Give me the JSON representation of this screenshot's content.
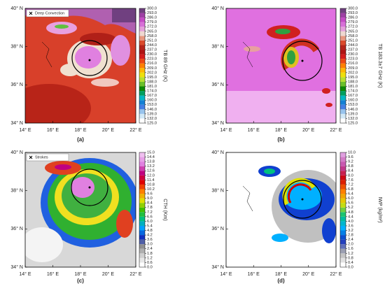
{
  "chart_data": [
    {
      "type": "map",
      "label": "(a)",
      "colorbar_label": "TB 89 GHz (K)",
      "legend": "Deep Convection",
      "xlim": [
        14,
        22
      ],
      "ylim": [
        34,
        40
      ],
      "xticks": [
        {
          "value": 14,
          "label": "14° E"
        },
        {
          "value": 16,
          "label": "16° E"
        },
        {
          "value": 18,
          "label": "18° E"
        },
        {
          "value": 20,
          "label": "20° E"
        },
        {
          "value": 22,
          "label": "22° E"
        }
      ],
      "yticks": [
        {
          "value": 34,
          "label": "34° N"
        },
        {
          "value": 36,
          "label": "36° N"
        },
        {
          "value": 38,
          "label": "38° N"
        },
        {
          "value": 40,
          "label": "40° N"
        }
      ],
      "clim": [
        125,
        300
      ],
      "colors": [
        "#ffffff",
        "#b0d8f0",
        "#2060e0",
        "#00c0c0",
        "#008000",
        "#a0e040",
        "#ffe000",
        "#ff8000",
        "#e02020",
        "#a01010",
        "#e05030",
        "#f0e0d0",
        "#e080e0",
        "#c040c0",
        "#704080"
      ],
      "cticks": [
        {
          "value": 125,
          "label": "125.0"
        },
        {
          "value": 132,
          "label": "132.0"
        },
        {
          "value": 139,
          "label": "139.0"
        },
        {
          "value": 146,
          "label": "146.0"
        },
        {
          "value": 153,
          "label": "153.0"
        },
        {
          "value": 160,
          "label": "160.0"
        },
        {
          "value": 167,
          "label": "167.0"
        },
        {
          "value": 174,
          "label": "174.0"
        },
        {
          "value": 181,
          "label": "181.0"
        },
        {
          "value": 188,
          "label": "188.0"
        },
        {
          "value": 195,
          "label": "195.0"
        },
        {
          "value": 202,
          "label": "202.0"
        },
        {
          "value": 209,
          "label": "209.0"
        },
        {
          "value": 216,
          "label": "216.0"
        },
        {
          "value": 223,
          "label": "223.0"
        },
        {
          "value": 230,
          "label": "230.0"
        },
        {
          "value": 237,
          "label": "237.0"
        },
        {
          "value": 244,
          "label": "244.0"
        },
        {
          "value": 251,
          "label": "251.0"
        },
        {
          "value": 258,
          "label": "258.0"
        },
        {
          "value": 265,
          "label": "265.0"
        },
        {
          "value": 272,
          "label": "272.0"
        },
        {
          "value": 279,
          "label": "279.0"
        },
        {
          "value": 286,
          "label": "286.0"
        },
        {
          "value": 293,
          "label": "293.0"
        },
        {
          "value": 300,
          "label": "300.0"
        }
      ]
    },
    {
      "type": "map",
      "label": "(b)",
      "colorbar_label": "TB 183.3±7 GHz (K)",
      "xlim": [
        14,
        22
      ],
      "ylim": [
        34,
        40
      ],
      "xticks": [
        {
          "value": 14,
          "label": "14° E"
        },
        {
          "value": 16,
          "label": "16° E"
        },
        {
          "value": 18,
          "label": "18° E"
        },
        {
          "value": 20,
          "label": "20° E"
        },
        {
          "value": 22,
          "label": "22° E"
        }
      ],
      "yticks": [
        {
          "value": 34,
          "label": "34° N"
        },
        {
          "value": 36,
          "label": "36° N"
        },
        {
          "value": 38,
          "label": "38° N"
        },
        {
          "value": 40,
          "label": "40° N"
        }
      ],
      "clim": [
        125,
        300
      ],
      "colors": [
        "#ffffff",
        "#b0d8f0",
        "#2060e0",
        "#00c0c0",
        "#008000",
        "#a0e040",
        "#ffe000",
        "#ff8000",
        "#e02020",
        "#a01010",
        "#e05030",
        "#f0e0d0",
        "#e080e0",
        "#c040c0",
        "#704080"
      ],
      "cticks": [
        {
          "value": 125,
          "label": "125.0"
        },
        {
          "value": 132,
          "label": "132.0"
        },
        {
          "value": 139,
          "label": "139.0"
        },
        {
          "value": 146,
          "label": "146.0"
        },
        {
          "value": 153,
          "label": "153.0"
        },
        {
          "value": 160,
          "label": "160.0"
        },
        {
          "value": 167,
          "label": "167.0"
        },
        {
          "value": 174,
          "label": "174.0"
        },
        {
          "value": 181,
          "label": "181.0"
        },
        {
          "value": 188,
          "label": "188.0"
        },
        {
          "value": 195,
          "label": "195.0"
        },
        {
          "value": 202,
          "label": "202.0"
        },
        {
          "value": 209,
          "label": "209.0"
        },
        {
          "value": 216,
          "label": "216.0"
        },
        {
          "value": 223,
          "label": "223.0"
        },
        {
          "value": 230,
          "label": "230.0"
        },
        {
          "value": 237,
          "label": "237.0"
        },
        {
          "value": 244,
          "label": "244.0"
        },
        {
          "value": 251,
          "label": "251.0"
        },
        {
          "value": 258,
          "label": "258.0"
        },
        {
          "value": 265,
          "label": "265.0"
        },
        {
          "value": 272,
          "label": "272.0"
        },
        {
          "value": 279,
          "label": "279.0"
        },
        {
          "value": 286,
          "label": "286.0"
        },
        {
          "value": 293,
          "label": "293.0"
        },
        {
          "value": 300,
          "label": "300.0"
        }
      ]
    },
    {
      "type": "map",
      "label": "(c)",
      "colorbar_label": "CTH (Km)",
      "legend": "Strokes",
      "xlim": [
        14,
        22
      ],
      "ylim": [
        34,
        40
      ],
      "xticks": [
        {
          "value": 14,
          "label": "14° E"
        },
        {
          "value": 16,
          "label": "16° E"
        },
        {
          "value": 18,
          "label": "18° E"
        },
        {
          "value": 20,
          "label": "20° E"
        },
        {
          "value": 22,
          "label": "22° E"
        }
      ],
      "yticks": [
        {
          "value": 34,
          "label": "34° N"
        },
        {
          "value": 36,
          "label": "36° N"
        },
        {
          "value": 38,
          "label": "38° N"
        },
        {
          "value": 40,
          "label": "40° N"
        }
      ],
      "clim": [
        0,
        15
      ],
      "colors": [
        "#ffffff",
        "#d0d0d0",
        "#909090",
        "#1030c0",
        "#00a0ff",
        "#00c080",
        "#40c000",
        "#e0e000",
        "#ff8000",
        "#e00000",
        "#c00080",
        "#e080e0",
        "#f0c0f0"
      ],
      "cticks": [
        {
          "value": 0,
          "label": "0.0"
        },
        0.6,
        1.2,
        1.8,
        2.4,
        {
          "value": 3,
          "label": "3.0"
        },
        3.6,
        4.2,
        4.8,
        5.4,
        {
          "value": 6,
          "label": "6.0"
        },
        6.6,
        7.2,
        7.8,
        8.4,
        {
          "value": 9,
          "label": "9.0"
        },
        9.6,
        10.2,
        10.8,
        11.4,
        {
          "value": 12,
          "label": "12.0"
        },
        12.6,
        13.2,
        13.8,
        14.4,
        {
          "value": 15,
          "label": "15.0"
        }
      ]
    },
    {
      "type": "map",
      "label": "(d)",
      "colorbar_label": "IWP (kg/m²)",
      "xlim": [
        14,
        22
      ],
      "ylim": [
        34,
        40
      ],
      "xticks": [
        {
          "value": 14,
          "label": "14° E"
        },
        {
          "value": 16,
          "label": "16° E"
        },
        {
          "value": 18,
          "label": "18° E"
        },
        {
          "value": 20,
          "label": "20° E"
        },
        {
          "value": 22,
          "label": "22° E"
        }
      ],
      "yticks": [
        {
          "value": 34,
          "label": "34° N"
        },
        {
          "value": 36,
          "label": "36° N"
        },
        {
          "value": 38,
          "label": "38° N"
        },
        {
          "value": 40,
          "label": "40° N"
        }
      ],
      "clim": [
        0,
        10
      ],
      "colors": [
        "#ffffff",
        "#b0b0b0",
        "#1030c0",
        "#00b0ff",
        "#00c080",
        "#e0e000",
        "#ff8000",
        "#d00000",
        "#c040a0",
        "#e0a0e0"
      ],
      "cticks": [
        {
          "value": 0,
          "label": "0.0"
        },
        0.4,
        0.8,
        1.2,
        1.6,
        {
          "value": 2,
          "label": "2.0"
        },
        2.4,
        2.8,
        3.2,
        3.6,
        {
          "value": 4,
          "label": "4.0"
        },
        4.4,
        4.8,
        5.2,
        5.6,
        {
          "value": 6,
          "label": "6.0"
        },
        6.4,
        6.8,
        7.2,
        7.6,
        {
          "value": 8,
          "label": "8.0"
        },
        8.4,
        8.8,
        9.2,
        9.6,
        {
          "value": 10,
          "label": "10.0"
        }
      ]
    }
  ]
}
